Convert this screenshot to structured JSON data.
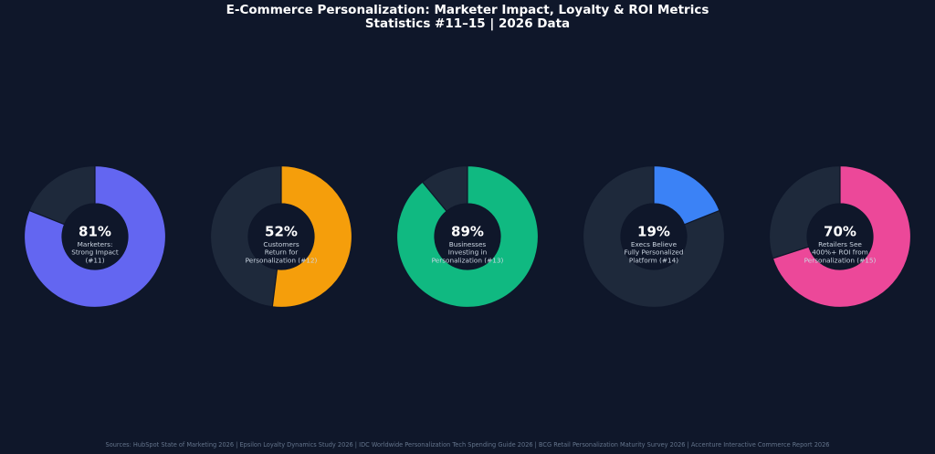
{
  "title": {
    "line1": "E-Commerce Personalization: Marketer Impact, Loyalty & ROI Metrics",
    "line2": "Statistics #11–15 | 2026 Data"
  },
  "source": "Sources: HubSpot State of Marketing 2026 | Epsilon Loyalty Dynamics Study 2026 | IDC Worldwide Personalization Tech Spending Guide 2026 | BCG Retail Personalization Maturity Survey 2026 | Accenture Interactive Commerce Report 2026",
  "chart_data": {
    "type": "pie",
    "variant": "donut",
    "track_color": "#1e293b",
    "center_color": "#0f172a",
    "value_unit": "%",
    "series": [
      {
        "value": 81,
        "label_lines": [
          "Marketers:",
          "Strong Impact",
          "(#11)"
        ],
        "color": "#6366f1"
      },
      {
        "value": 52,
        "label_lines": [
          "Customers",
          "Return for",
          "Personalization (#12)"
        ],
        "color": "#f59e0b"
      },
      {
        "value": 89,
        "label_lines": [
          "Businesses",
          "Investing in",
          "Personalization (#13)"
        ],
        "color": "#10b981"
      },
      {
        "value": 19,
        "label_lines": [
          "Execs Believe",
          "Fully Personalized",
          "Platform (#14)"
        ],
        "color": "#3b82f6"
      },
      {
        "value": 70,
        "label_lines": [
          "Retailers See",
          "400%+ ROI from",
          "Personalization (#15)"
        ],
        "color": "#ec4899"
      }
    ]
  }
}
